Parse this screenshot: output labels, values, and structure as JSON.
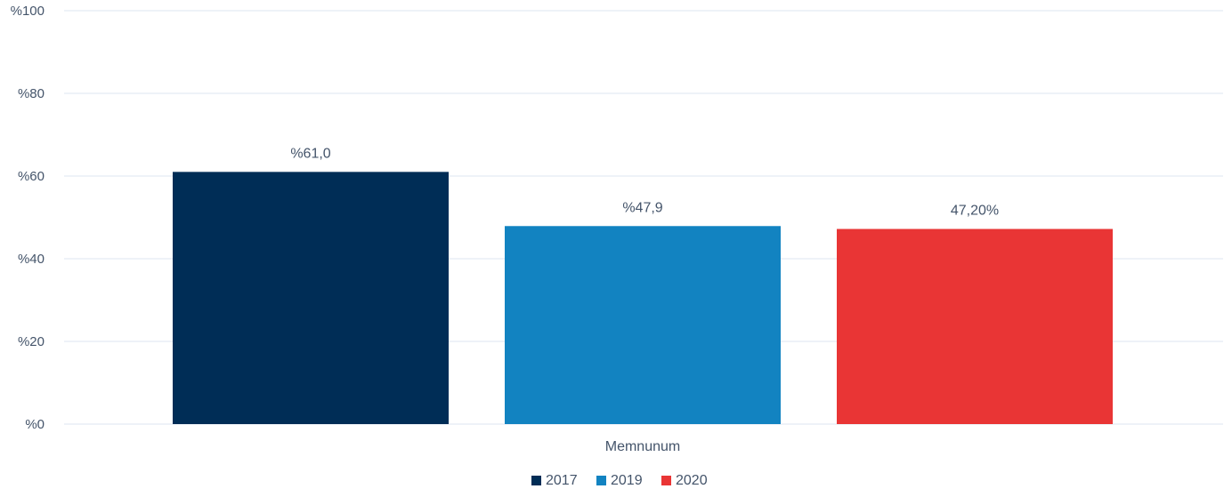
{
  "chart_data": {
    "type": "bar",
    "categories": [
      "Memnunum"
    ],
    "series": [
      {
        "name": "2017",
        "values": [
          61.0
        ],
        "label": "%61,0",
        "color": "#002d56"
      },
      {
        "name": "2019",
        "values": [
          47.9
        ],
        "label": "%47,9",
        "color": "#1283c1"
      },
      {
        "name": "2020",
        "values": [
          47.2
        ],
        "label": "47,20%",
        "color": "#e93535"
      }
    ],
    "y_ticks": [
      {
        "value": 0,
        "label": "%0"
      },
      {
        "value": 20,
        "label": "%20"
      },
      {
        "value": 40,
        "label": "%40"
      },
      {
        "value": 60,
        "label": "%60"
      },
      {
        "value": 80,
        "label": "%80"
      },
      {
        "value": 100,
        "label": "%100"
      }
    ],
    "ylim": [
      0,
      100
    ],
    "title": "",
    "xlabel": "",
    "ylabel": "",
    "grid": true,
    "legend_position": "bottom-center",
    "gridline_color": "#dce6f0"
  }
}
